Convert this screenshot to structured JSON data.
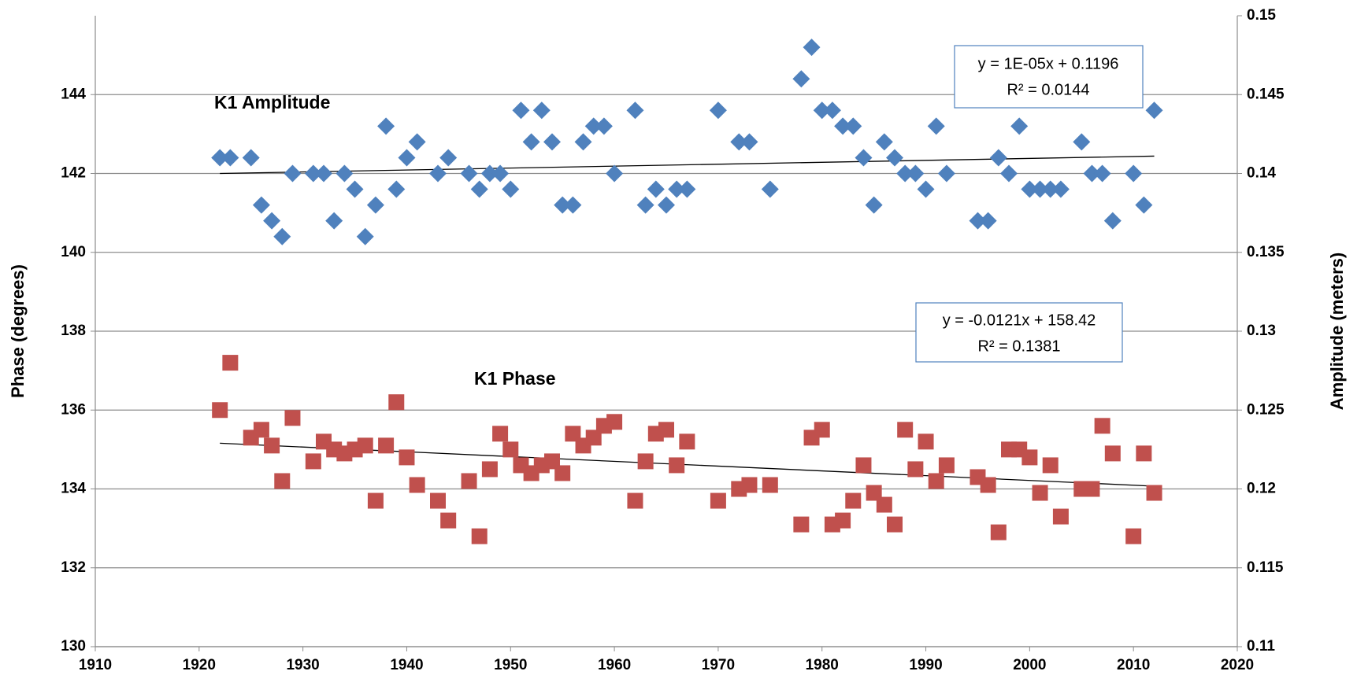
{
  "chart_data": {
    "type": "scatter",
    "y_axis_label": "Phase (degrees)",
    "y2_axis_label": "Amplitude (meters)",
    "xlim": [
      1910,
      2020
    ],
    "xticks": [
      1910,
      1920,
      1930,
      1940,
      1950,
      1960,
      1970,
      1980,
      1990,
      2000,
      2010,
      2020
    ],
    "ylim": [
      130,
      146
    ],
    "yticks": [
      130,
      132,
      134,
      136,
      138,
      140,
      142,
      144
    ],
    "y2lim": [
      0.11,
      0.15
    ],
    "y2ticks": [
      0.11,
      0.115,
      0.12,
      0.125,
      0.13,
      0.135,
      0.14,
      0.145,
      0.15
    ],
    "grid": true,
    "series": [
      {
        "name": "K1 Amplitude",
        "axis": "y2",
        "marker": "diamond",
        "color": "#4f81bd",
        "x": [
          1922,
          1923,
          1925,
          1926,
          1927,
          1928,
          1929,
          1931,
          1932,
          1933,
          1934,
          1935,
          1936,
          1937,
          1938,
          1939,
          1940,
          1941,
          1943,
          1944,
          1946,
          1947,
          1948,
          1949,
          1950,
          1951,
          1952,
          1953,
          1954,
          1955,
          1956,
          1957,
          1958,
          1959,
          1960,
          1962,
          1963,
          1964,
          1965,
          1966,
          1967,
          1970,
          1972,
          1973,
          1975,
          1978,
          1979,
          1980,
          1981,
          1982,
          1983,
          1984,
          1985,
          1986,
          1987,
          1988,
          1989,
          1990,
          1991,
          1992,
          1995,
          1996,
          1997,
          1998,
          1999,
          2000,
          2001,
          2002,
          2003,
          2005,
          2006,
          2007,
          2008,
          2010,
          2011,
          2012
        ],
        "values": [
          0.141,
          0.141,
          0.141,
          0.138,
          0.137,
          0.136,
          0.14,
          0.14,
          0.14,
          0.137,
          0.14,
          0.139,
          0.136,
          0.138,
          0.143,
          0.139,
          0.141,
          0.142,
          0.14,
          0.141,
          0.14,
          0.139,
          0.14,
          0.14,
          0.139,
          0.144,
          0.142,
          0.144,
          0.142,
          0.138,
          0.138,
          0.142,
          0.143,
          0.143,
          0.14,
          0.144,
          0.138,
          0.139,
          0.138,
          0.139,
          0.139,
          0.144,
          0.142,
          0.142,
          0.139,
          0.146,
          0.148,
          0.144,
          0.144,
          0.143,
          0.143,
          0.141,
          0.138,
          0.142,
          0.141,
          0.14,
          0.14,
          0.139,
          0.143,
          0.14,
          0.137,
          0.137,
          0.141,
          0.14,
          0.143,
          0.139,
          0.139,
          0.139,
          0.139,
          0.142,
          0.14,
          0.14,
          0.137,
          0.14,
          0.138,
          0.144
        ]
      },
      {
        "name": "K1 Phase",
        "axis": "y",
        "marker": "square",
        "color": "#c0504d",
        "x": [
          1922,
          1923,
          1925,
          1926,
          1927,
          1928,
          1929,
          1931,
          1932,
          1933,
          1934,
          1935,
          1936,
          1937,
          1938,
          1939,
          1940,
          1941,
          1943,
          1944,
          1946,
          1947,
          1948,
          1949,
          1950,
          1951,
          1952,
          1953,
          1954,
          1955,
          1956,
          1957,
          1958,
          1959,
          1960,
          1962,
          1963,
          1964,
          1965,
          1966,
          1967,
          1970,
          1972,
          1973,
          1975,
          1978,
          1979,
          1980,
          1981,
          1982,
          1983,
          1984,
          1985,
          1986,
          1987,
          1988,
          1989,
          1990,
          1991,
          1992,
          1995,
          1996,
          1997,
          1998,
          1999,
          2000,
          2001,
          2002,
          2003,
          2005,
          2006,
          2007,
          2008,
          2010,
          2011,
          2012
        ],
        "values": [
          136.0,
          137.2,
          135.3,
          135.5,
          135.1,
          134.2,
          135.8,
          134.7,
          135.2,
          135.0,
          134.9,
          135.0,
          135.1,
          133.7,
          135.1,
          136.2,
          134.8,
          134.1,
          133.7,
          133.2,
          134.2,
          132.8,
          134.5,
          135.4,
          135.0,
          134.6,
          134.4,
          134.6,
          134.7,
          134.4,
          135.4,
          135.1,
          135.3,
          135.6,
          135.7,
          133.7,
          134.7,
          135.4,
          135.5,
          134.6,
          135.2,
          133.7,
          134.0,
          134.1,
          134.1,
          133.1,
          135.3,
          135.5,
          133.1,
          133.2,
          133.7,
          134.6,
          133.9,
          133.6,
          133.1,
          135.5,
          134.5,
          135.2,
          134.2,
          134.6,
          134.3,
          134.1,
          132.9,
          135.0,
          135.0,
          134.8,
          133.9,
          134.6,
          133.3,
          134.0,
          134.0,
          135.6,
          134.9,
          132.8,
          134.9,
          133.9
        ]
      }
    ],
    "trendlines": [
      {
        "axis": "y2",
        "color": "#000000",
        "x": [
          1922,
          2012
        ],
        "values": [
          0.14,
          0.1411
        ],
        "equation": "y = 1E-05x + 0.1196",
        "r2": "R² = 0.0144"
      },
      {
        "axis": "y",
        "color": "#000000",
        "x": [
          1922,
          2012
        ],
        "values": [
          135.16,
          134.07
        ],
        "equation": "y = -0.0121x + 158.42",
        "r2": "R² = 0.1381"
      }
    ]
  }
}
